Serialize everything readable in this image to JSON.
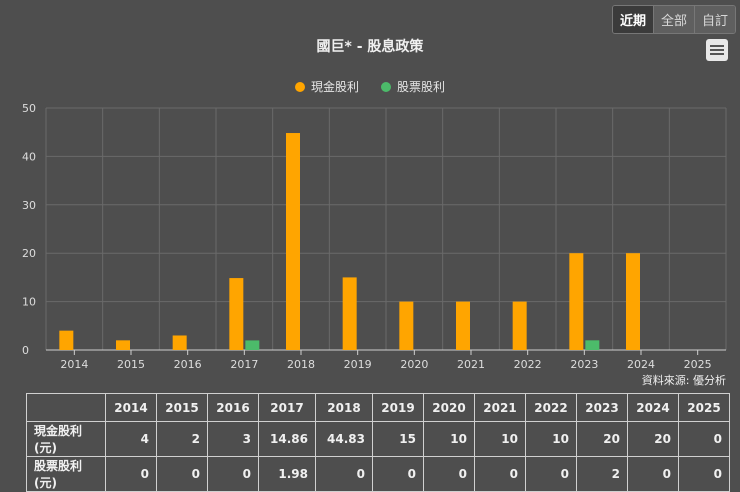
{
  "range_buttons": [
    {
      "label": "近期",
      "active": true
    },
    {
      "label": "全部",
      "active": false
    },
    {
      "label": "自訂",
      "active": false
    }
  ],
  "chart_data": {
    "type": "bar",
    "title": "國巨* - 股息政策",
    "categories": [
      "2014",
      "2015",
      "2016",
      "2017",
      "2018",
      "2019",
      "2020",
      "2021",
      "2022",
      "2023",
      "2024",
      "2025"
    ],
    "series": [
      {
        "name": "現金股利",
        "color": "#ffa500",
        "values": [
          4,
          2,
          3,
          14.86,
          44.83,
          15,
          10,
          10,
          10,
          20,
          20,
          0
        ]
      },
      {
        "name": "股票股利",
        "color": "#4cbb6a",
        "values": [
          0,
          0,
          0,
          1.98,
          0,
          0,
          0,
          0,
          0,
          2,
          0,
          0
        ]
      }
    ],
    "ylim": [
      0,
      50
    ],
    "yticks": [
      0,
      10,
      20,
      30,
      40,
      50
    ],
    "grid": true,
    "legend_position": "top-center",
    "source": "資料來源: 優分析"
  },
  "table": {
    "rows": [
      {
        "label": "現金股利(元)",
        "values": [
          "4",
          "2",
          "3",
          "14.86",
          "44.83",
          "15",
          "10",
          "10",
          "10",
          "20",
          "20",
          "0"
        ]
      },
      {
        "label": "股票股利(元)",
        "values": [
          "0",
          "0",
          "0",
          "1.98",
          "0",
          "0",
          "0",
          "0",
          "0",
          "2",
          "0",
          "0"
        ]
      }
    ]
  }
}
